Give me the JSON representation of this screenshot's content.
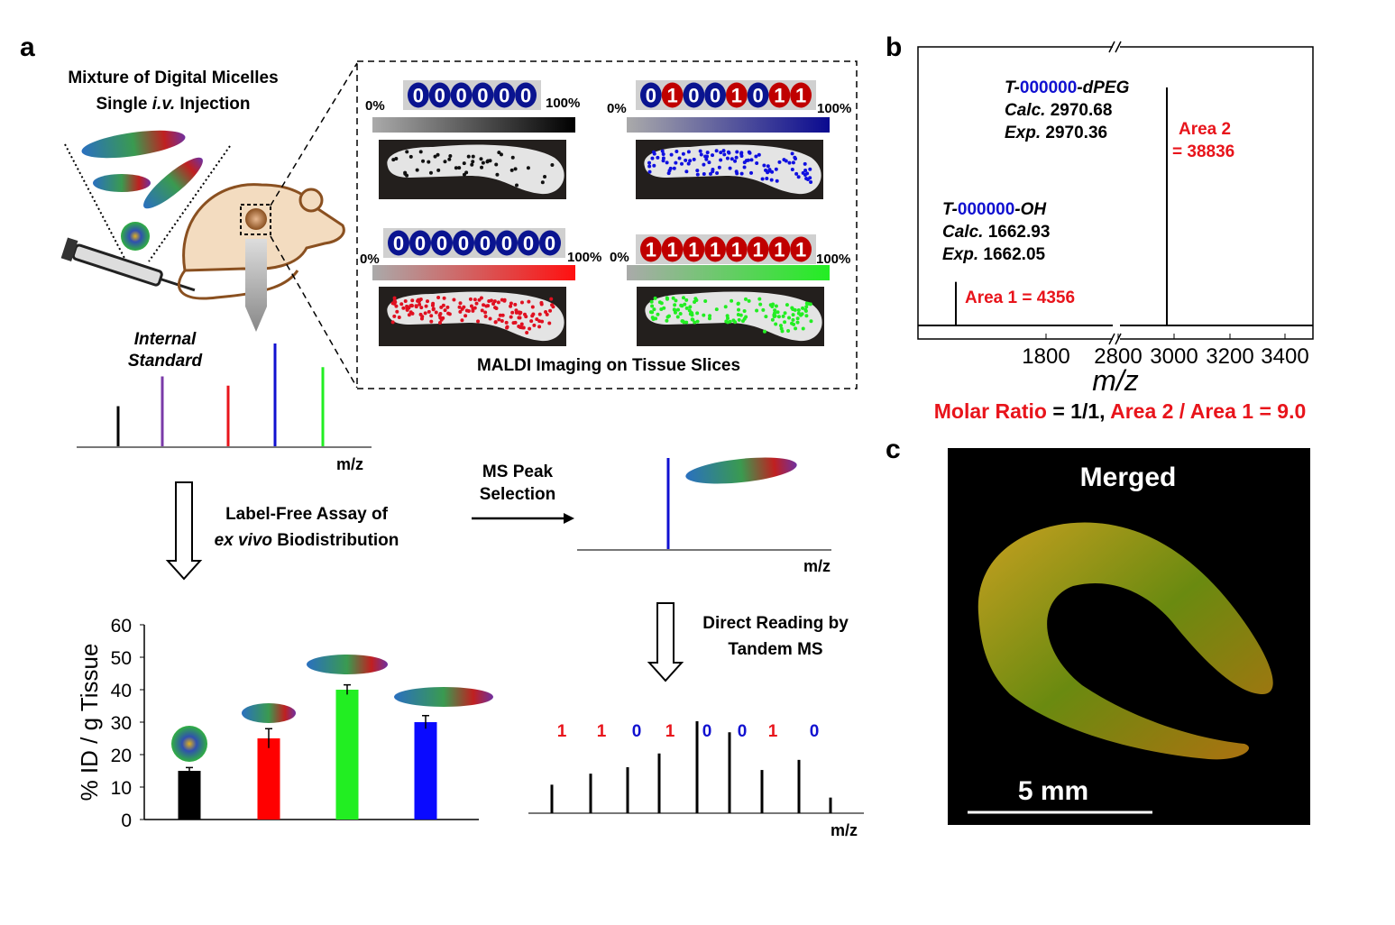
{
  "panel_labels": {
    "a": "a",
    "b": "b",
    "c": "c"
  },
  "colors": {
    "red": "#e8141b",
    "blue": "#1010d0",
    "navy": "#0a1490",
    "darkred": "#c00000",
    "green": "#22ee22",
    "purple": "#7a3aa8"
  },
  "panel_a": {
    "mixture_line1": "Mixture of Digital Micelles",
    "mixture_line2_pre": "Single ",
    "mixture_line2_italic": "i.v.",
    "mixture_line2_post": " Injection",
    "internal_standard_line1": "Internal",
    "internal_standard_line2": "Standard",
    "mz_label": "m/z",
    "standard_spectrum": [
      {
        "color": "#000000",
        "intensity": 0.39
      },
      {
        "color": "#7a3aa8",
        "intensity": 0.68
      },
      {
        "color": "#e8141b",
        "intensity": 0.59
      },
      {
        "color": "#1010d0",
        "intensity": 1.0
      },
      {
        "color": "#22ee22",
        "intensity": 0.77
      }
    ],
    "maldi_caption": "MALDI Imaging on Tissue Slices",
    "images": [
      {
        "code": "000000",
        "min": "0%",
        "max": "100%",
        "color": "#000000",
        "dot_color": "#111111"
      },
      {
        "code": "01001011",
        "min": "0%",
        "max": "100%",
        "color": "#0a0a90",
        "dot_color": "#1010e0"
      },
      {
        "code": "00000000",
        "min": "0%",
        "max": "100%",
        "color": "#ff1010",
        "dot_color": "#e01020"
      },
      {
        "code": "11111111",
        "min": "0%",
        "max": "100%",
        "color": "#22ee22",
        "dot_color": "#22ee22"
      }
    ],
    "assay_line1": "Label-Free Assay of",
    "assay_line2_italic": "ex vivo",
    "assay_line2_post": " Biodistribution",
    "peak_selection_line1": "MS Peak",
    "peak_selection_line2": "Selection",
    "direct_reading_line1": "Direct Reading by",
    "direct_reading_line2": "Tandem MS",
    "tandem_bits": [
      "1",
      "1",
      "0",
      "1",
      "0",
      "0",
      "1",
      "0"
    ],
    "tandem_intensities": [
      0.31,
      0.43,
      0.5,
      0.65,
      1.0,
      0.88,
      0.47,
      0.58,
      0.17
    ]
  },
  "chart_data": [
    {
      "type": "bar",
      "ylabel": "% ID / g Tissue",
      "ylim": [
        0,
        60
      ],
      "yticks": [
        "0",
        "10",
        "20",
        "30",
        "40",
        "50",
        "60"
      ],
      "categories": [
        "spherical micelle",
        "short micelle",
        "medium micelle",
        "long micelle"
      ],
      "values": [
        15,
        25,
        40,
        30
      ],
      "errors": [
        1,
        3,
        1.5,
        2
      ],
      "colors": [
        "#000000",
        "#ff0000",
        "#22ee22",
        "#0a0aff"
      ]
    },
    {
      "type": "line",
      "xlabel": "m/z",
      "xticks": [
        "1800",
        "2800",
        "3000",
        "3200",
        "3400"
      ],
      "axis_break": true,
      "peaks": [
        {
          "mz": 1662.05,
          "relative_intensity": 0.18,
          "label_prefix": "T-",
          "label_code": "000000",
          "label_suffix": "-OH",
          "calc_label": "Calc.",
          "calc": "1662.93",
          "exp_label": "Exp.",
          "exp": "1662.05",
          "area_label": "Area 1 = 4356"
        },
        {
          "mz": 2970.36,
          "relative_intensity": 1.0,
          "label_prefix": "T-",
          "label_code": "000000",
          "label_suffix": "-dPEG",
          "calc_label": "Calc.",
          "calc": "2970.68",
          "exp_label": "Exp.",
          "exp": "2970.36",
          "area_label_1": "Area 2",
          "area_label_2": "= 38836"
        }
      ],
      "footer_red1": "Molar Ratio",
      "footer_black": " = 1/1, ",
      "footer_red2": "Area 2 / Area 1 = 9.0"
    }
  ],
  "panel_c": {
    "title": "Merged",
    "scale_bar": "5 mm"
  }
}
